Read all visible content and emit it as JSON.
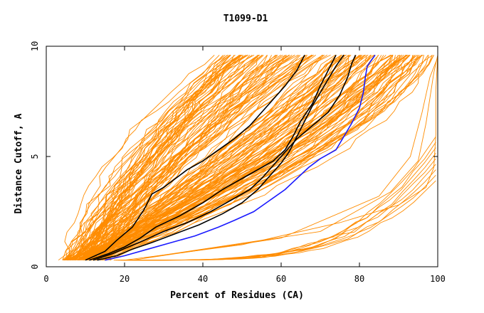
{
  "chart_data": {
    "type": "line",
    "title": "T1099-D1",
    "xlabel": "Percent of Residues (CA)",
    "ylabel": "Distance Cutoff, A",
    "xlim": [
      0,
      100
    ],
    "ylim": [
      0,
      10
    ],
    "x_ticks": [
      0,
      20,
      40,
      60,
      80,
      100
    ],
    "y_ticks": [
      0,
      5,
      10
    ],
    "x_tick_labels": [
      "0",
      "20",
      "40",
      "60",
      "80",
      "100"
    ],
    "y_tick_labels": [
      "0",
      "5",
      "10"
    ],
    "grid": false,
    "legend": "none",
    "colors": {
      "orange": "#ff8c00",
      "black": "#000000",
      "blue": "#1a1aff"
    },
    "series": [
      {
        "color": "black",
        "points": [
          [
            10,
            0.3
          ],
          [
            15,
            0.7
          ],
          [
            18,
            1.2
          ],
          [
            22,
            1.8
          ],
          [
            25,
            2.6
          ],
          [
            27,
            3.3
          ],
          [
            30,
            3.6
          ],
          [
            33,
            4.0
          ],
          [
            36,
            4.4
          ],
          [
            40,
            4.8
          ],
          [
            44,
            5.3
          ],
          [
            48,
            5.8
          ],
          [
            52,
            6.4
          ],
          [
            55,
            7.0
          ],
          [
            58,
            7.6
          ],
          [
            61,
            8.2
          ],
          [
            64,
            8.9
          ],
          [
            66,
            9.6
          ]
        ]
      },
      {
        "color": "black",
        "points": [
          [
            11,
            0.3
          ],
          [
            16,
            0.6
          ],
          [
            20,
            0.9
          ],
          [
            24,
            1.3
          ],
          [
            28,
            1.8
          ],
          [
            34,
            2.3
          ],
          [
            40,
            2.9
          ],
          [
            45,
            3.5
          ],
          [
            50,
            4.0
          ],
          [
            55,
            4.5
          ],
          [
            58,
            4.8
          ],
          [
            61,
            5.3
          ],
          [
            63,
            5.9
          ],
          [
            65,
            6.6
          ],
          [
            68,
            7.4
          ],
          [
            70,
            8.2
          ],
          [
            72,
            8.9
          ],
          [
            74,
            9.6
          ]
        ]
      },
      {
        "color": "black",
        "points": [
          [
            12,
            0.3
          ],
          [
            17,
            0.6
          ],
          [
            21,
            0.9
          ],
          [
            25,
            1.2
          ],
          [
            30,
            1.6
          ],
          [
            36,
            2.0
          ],
          [
            42,
            2.5
          ],
          [
            47,
            3.0
          ],
          [
            52,
            3.5
          ],
          [
            55,
            4.0
          ],
          [
            58,
            4.6
          ],
          [
            61,
            5.2
          ],
          [
            64,
            5.8
          ],
          [
            68,
            6.4
          ],
          [
            72,
            7.0
          ],
          [
            75,
            7.8
          ],
          [
            77,
            8.6
          ],
          [
            78,
            9.2
          ],
          [
            79,
            9.6
          ]
        ]
      },
      {
        "color": "black",
        "points": [
          [
            13,
            0.3
          ],
          [
            18,
            0.5
          ],
          [
            22,
            0.8
          ],
          [
            27,
            1.1
          ],
          [
            33,
            1.5
          ],
          [
            39,
            1.9
          ],
          [
            45,
            2.4
          ],
          [
            50,
            2.9
          ],
          [
            54,
            3.5
          ],
          [
            57,
            4.1
          ],
          [
            60,
            4.7
          ],
          [
            62,
            5.2
          ],
          [
            64,
            5.9
          ],
          [
            66,
            6.6
          ],
          [
            68,
            7.3
          ],
          [
            70,
            7.9
          ],
          [
            72,
            8.5
          ],
          [
            74,
            9.1
          ],
          [
            76,
            9.6
          ]
        ]
      },
      {
        "color": "blue",
        "points": [
          [
            15,
            0.3
          ],
          [
            20,
            0.5
          ],
          [
            26,
            0.8
          ],
          [
            32,
            1.1
          ],
          [
            38,
            1.4
          ],
          [
            44,
            1.8
          ],
          [
            48,
            2.1
          ],
          [
            53,
            2.5
          ],
          [
            57,
            3.0
          ],
          [
            61,
            3.5
          ],
          [
            64,
            4.0
          ],
          [
            67,
            4.5
          ],
          [
            70,
            4.9
          ],
          [
            74,
            5.3
          ],
          [
            76,
            5.9
          ],
          [
            78,
            6.5
          ],
          [
            80,
            7.2
          ],
          [
            81,
            7.9
          ],
          [
            81.5,
            8.6
          ],
          [
            82,
            9.1
          ],
          [
            84,
            9.6
          ]
        ]
      }
    ]
  }
}
